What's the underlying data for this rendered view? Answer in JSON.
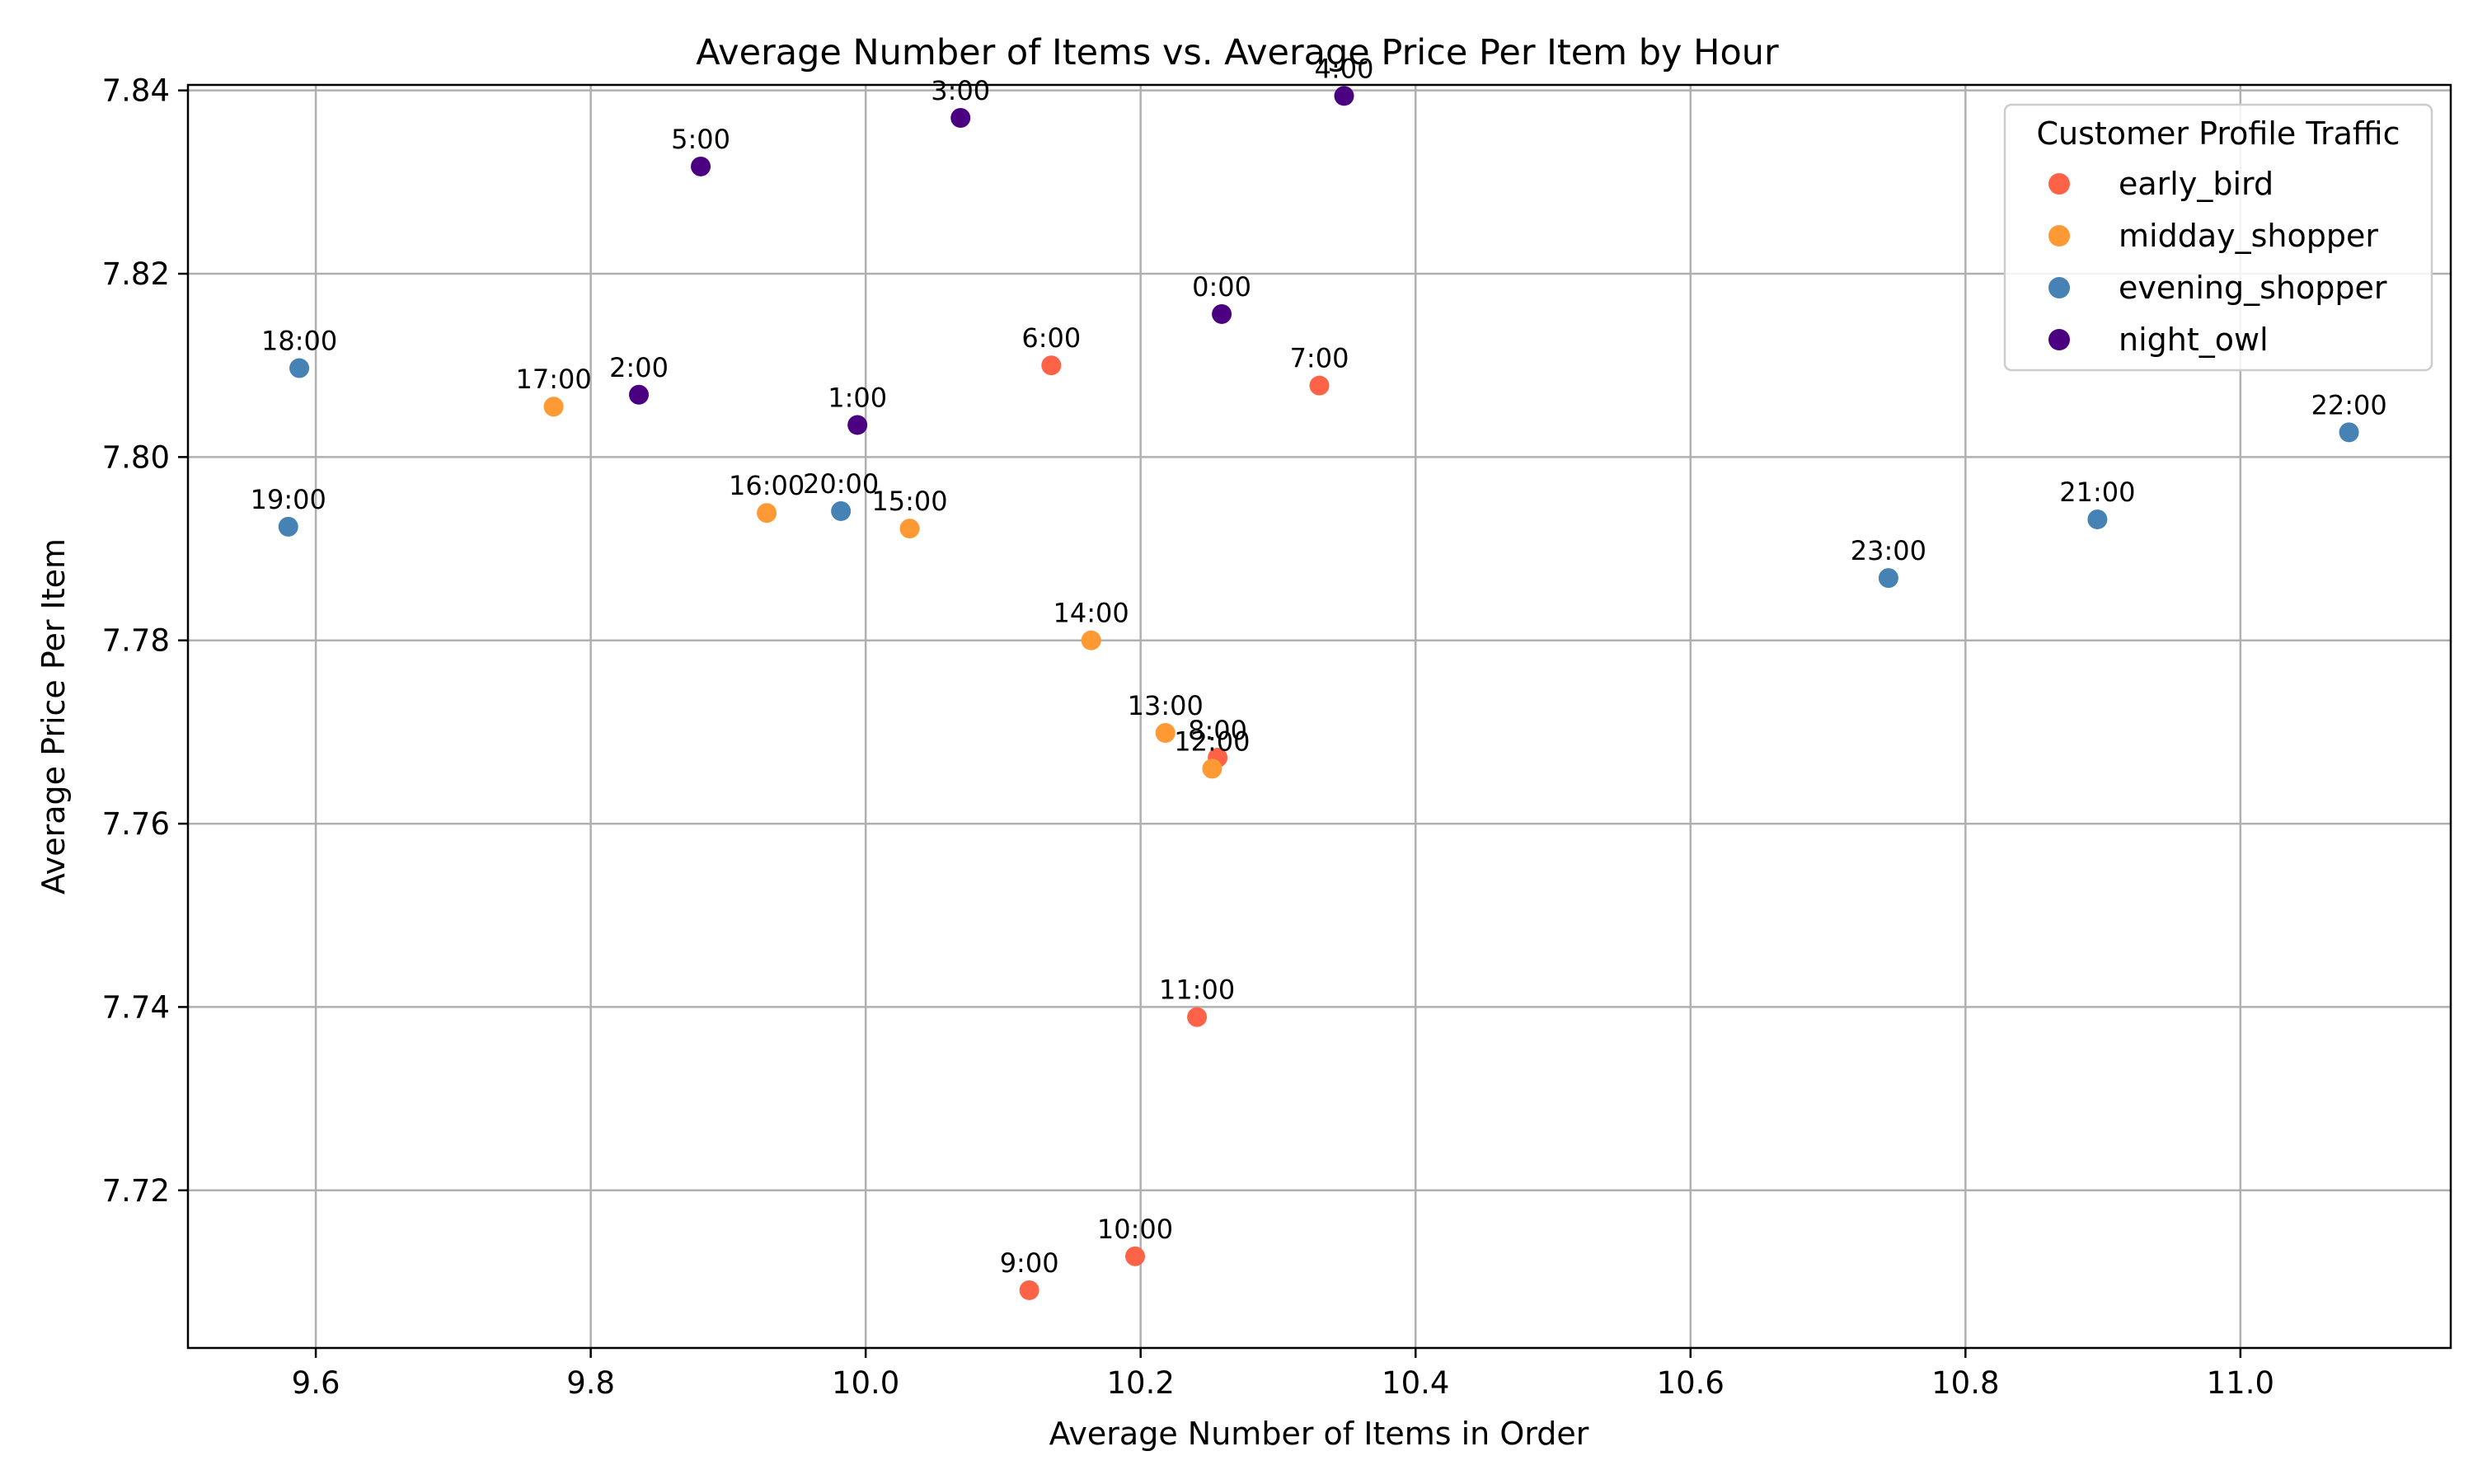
{
  "chart_data": {
    "type": "scatter",
    "title": "Average Number of Items vs. Average Price Per Item by Hour",
    "xlabel": "Average Number of Items in Order",
    "ylabel": "Average Price Per Item",
    "xlim": [
      9.507,
      11.153
    ],
    "ylim": [
      7.7028,
      7.8406
    ],
    "xticks": [
      9.6,
      9.8,
      10.0,
      10.2,
      10.4,
      10.6,
      10.8,
      11.0
    ],
    "xtick_labels": [
      "9.6",
      "9.8",
      "10.0",
      "10.2",
      "10.4",
      "10.6",
      "10.8",
      "11.0"
    ],
    "yticks": [
      7.72,
      7.74,
      7.76,
      7.78,
      7.8,
      7.82,
      7.84
    ],
    "ytick_labels": [
      "7.72",
      "7.74",
      "7.76",
      "7.78",
      "7.80",
      "7.82",
      "7.84"
    ],
    "grid": true,
    "legend": {
      "title": "Customer Profile Traffic",
      "position": "top-right"
    },
    "series": [
      {
        "name": "early_bird",
        "color": "#ff6347",
        "points": [
          {
            "label": "6:00",
            "x": 10.135,
            "y": 7.81
          },
          {
            "label": "7:00",
            "x": 10.33,
            "y": 7.8078
          },
          {
            "label": "8:00",
            "x": 10.256,
            "y": 7.7672
          },
          {
            "label": "9:00",
            "x": 10.119,
            "y": 7.7091
          },
          {
            "label": "10:00",
            "x": 10.196,
            "y": 7.7128
          },
          {
            "label": "11:00",
            "x": 10.241,
            "y": 7.7389
          }
        ]
      },
      {
        "name": "midday_shopper",
        "color": "#ff9933",
        "points": [
          {
            "label": "12:00",
            "x": 10.252,
            "y": 7.766
          },
          {
            "label": "13:00",
            "x": 10.218,
            "y": 7.7699
          },
          {
            "label": "14:00",
            "x": 10.164,
            "y": 7.78
          },
          {
            "label": "15:00",
            "x": 10.032,
            "y": 7.7922
          },
          {
            "label": "16:00",
            "x": 9.928,
            "y": 7.7939
          },
          {
            "label": "17:00",
            "x": 9.773,
            "y": 7.8055
          }
        ]
      },
      {
        "name": "evening_shopper",
        "color": "#4682b4",
        "points": [
          {
            "label": "18:00",
            "x": 9.588,
            "y": 7.8097
          },
          {
            "label": "19:00",
            "x": 9.58,
            "y": 7.7924
          },
          {
            "label": "20:00",
            "x": 9.982,
            "y": 7.7941
          },
          {
            "label": "21:00",
            "x": 10.896,
            "y": 7.7932
          },
          {
            "label": "22:00",
            "x": 11.079,
            "y": 7.8027
          },
          {
            "label": "23:00",
            "x": 10.744,
            "y": 7.7868
          }
        ]
      },
      {
        "name": "night_owl",
        "color": "#4b0082",
        "points": [
          {
            "label": "0:00",
            "x": 10.259,
            "y": 7.8156
          },
          {
            "label": "1:00",
            "x": 9.994,
            "y": 7.8035
          },
          {
            "label": "2:00",
            "x": 9.835,
            "y": 7.8068
          },
          {
            "label": "3:00",
            "x": 10.069,
            "y": 7.837
          },
          {
            "label": "4:00",
            "x": 10.348,
            "y": 7.8394
          },
          {
            "label": "5:00",
            "x": 9.88,
            "y": 7.8317
          }
        ]
      }
    ]
  }
}
